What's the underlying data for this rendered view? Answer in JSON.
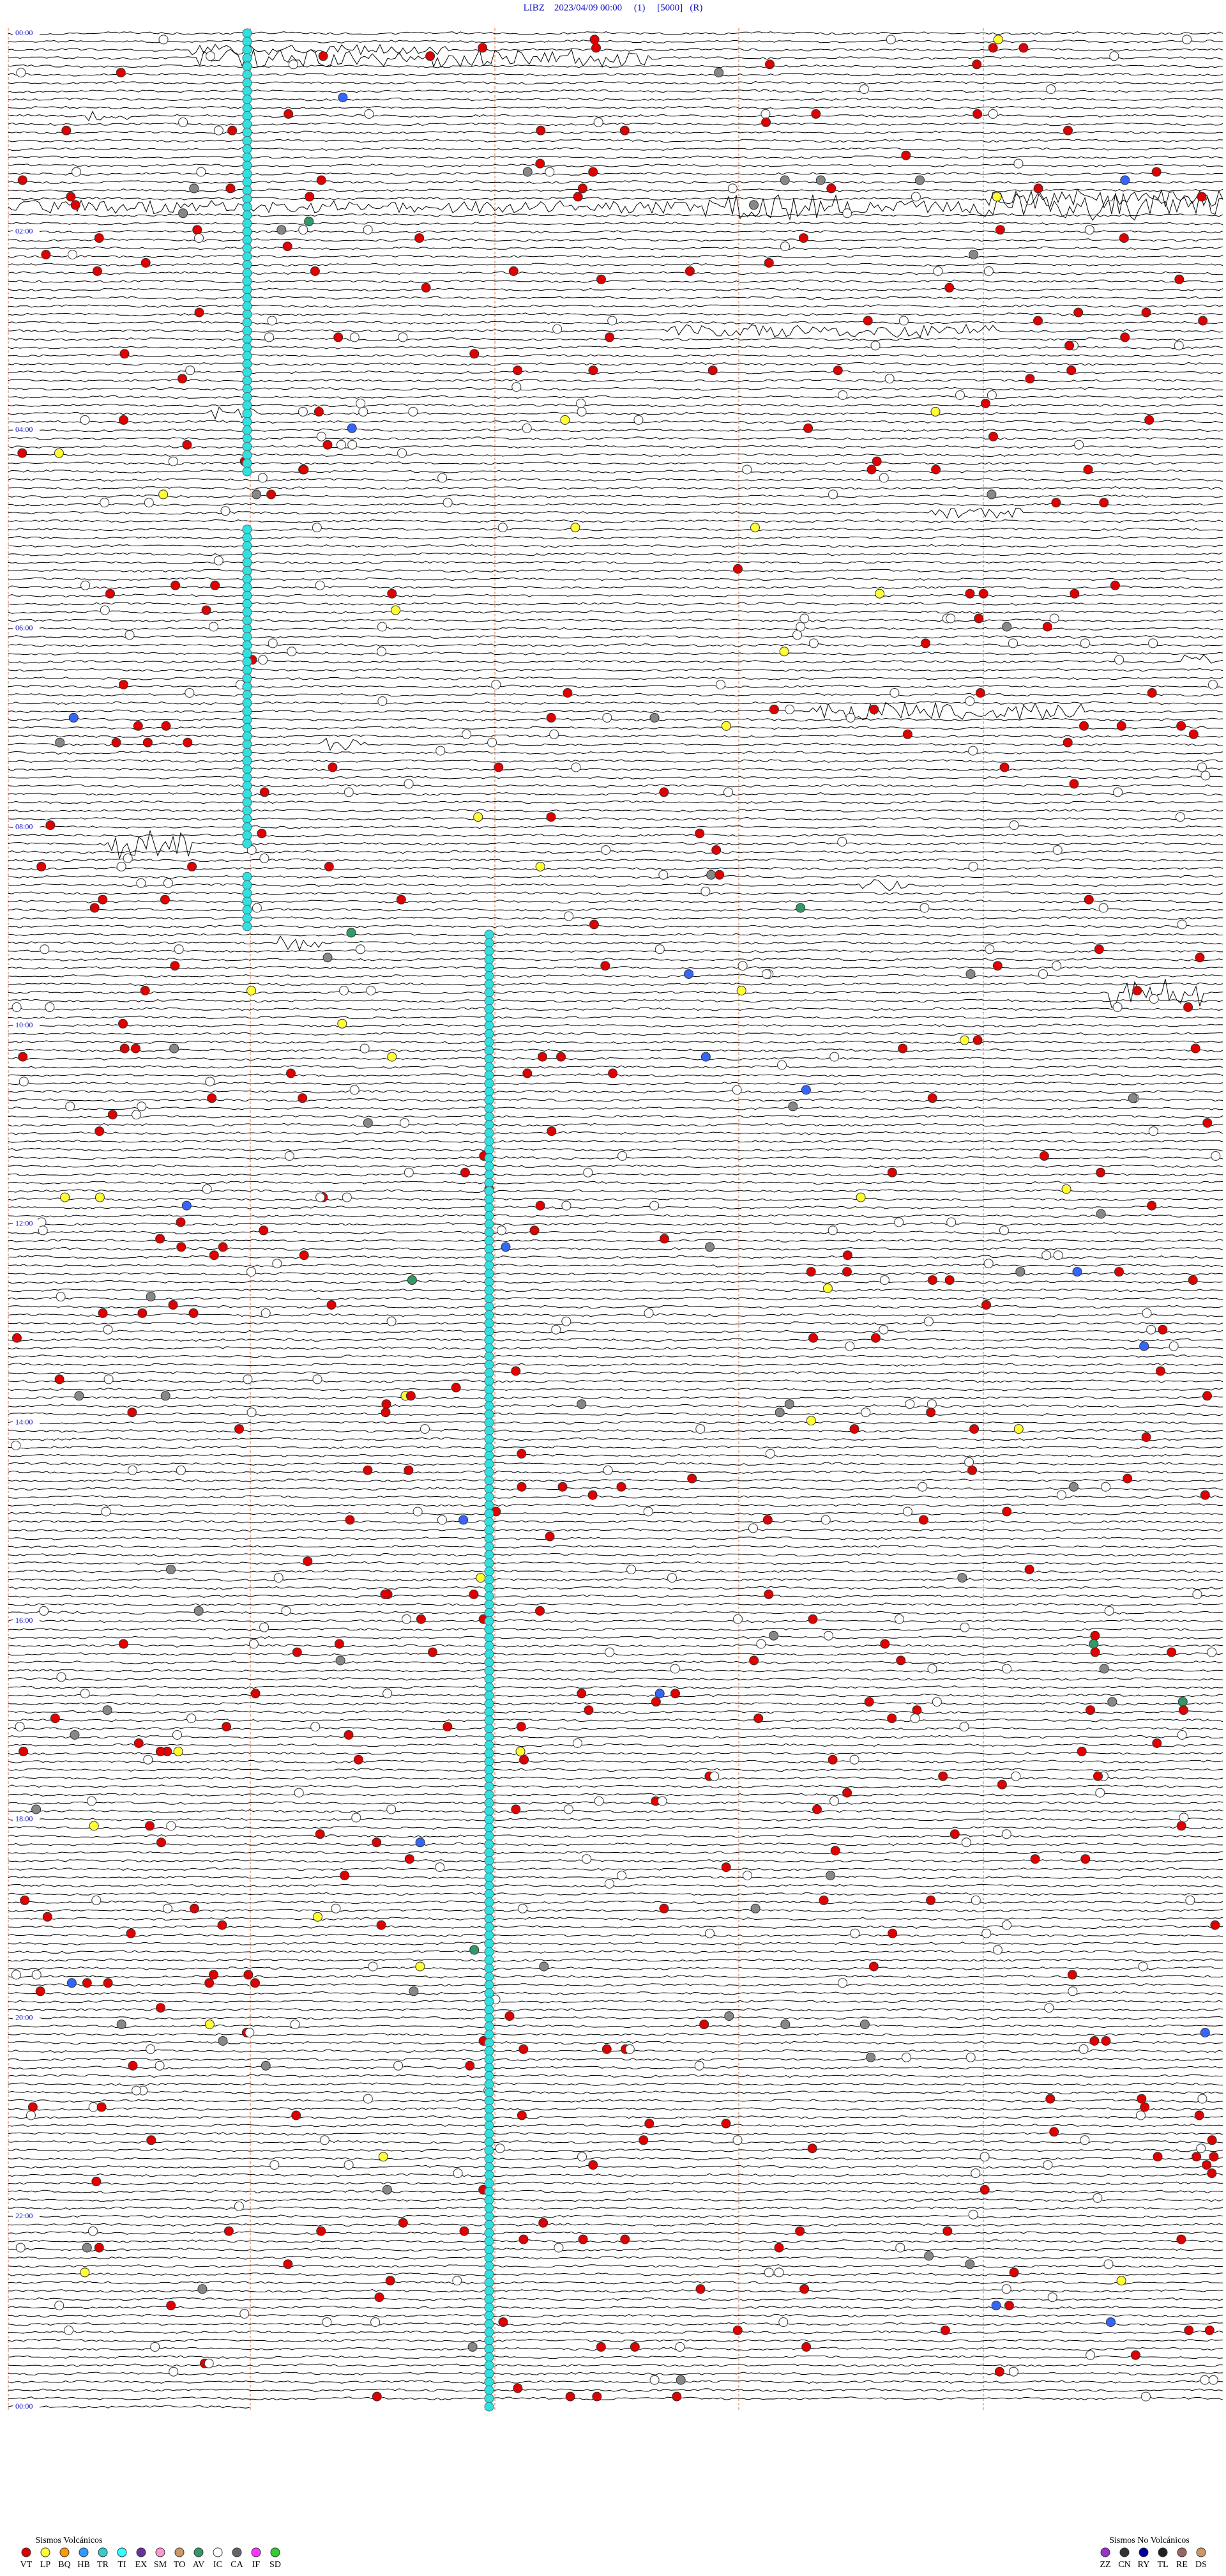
{
  "header": {
    "title": "LIBZ    2023/04/09 00:00     (1)     [5000]   (R)"
  },
  "time_labels": [
    "00:00",
    "02:00",
    "04:00",
    "06:00",
    "08:00",
    "10:00",
    "12:00",
    "14:00",
    "16:00",
    "18:00",
    "20:00",
    "22:00",
    "00:00"
  ],
  "legend_volcanic": {
    "title": "Sismos Volcánicos",
    "items": [
      {
        "code": "VT",
        "color": "#e00000"
      },
      {
        "code": "LP",
        "color": "#ffff33"
      },
      {
        "code": "BQ",
        "color": "#ff9900"
      },
      {
        "code": "HB",
        "color": "#3399ff"
      },
      {
        "code": "TR",
        "color": "#33cccc"
      },
      {
        "code": "TI",
        "color": "#33ffff"
      },
      {
        "code": "EX",
        "color": "#663399"
      },
      {
        "code": "SM",
        "color": "#ff99cc"
      },
      {
        "code": "TO",
        "color": "#cc9966"
      },
      {
        "code": "AV",
        "color": "#339966"
      },
      {
        "code": "IC",
        "color": "#ffffff"
      },
      {
        "code": "CA",
        "color": "#666666"
      },
      {
        "code": "IF",
        "color": "#ff33ff"
      },
      {
        "code": "SD",
        "color": "#33cc33"
      }
    ]
  },
  "legend_non_volcanic": {
    "title": "Sismos No Volcánicos",
    "items": [
      {
        "code": "ZZ",
        "color": "#9933cc"
      },
      {
        "code": "CN",
        "color": "#333333"
      },
      {
        "code": "RY",
        "color": "#000099"
      },
      {
        "code": "TL",
        "color": "#222222"
      },
      {
        "code": "RE",
        "color": "#996666"
      },
      {
        "code": "DS",
        "color": "#cc9966"
      }
    ]
  }
}
